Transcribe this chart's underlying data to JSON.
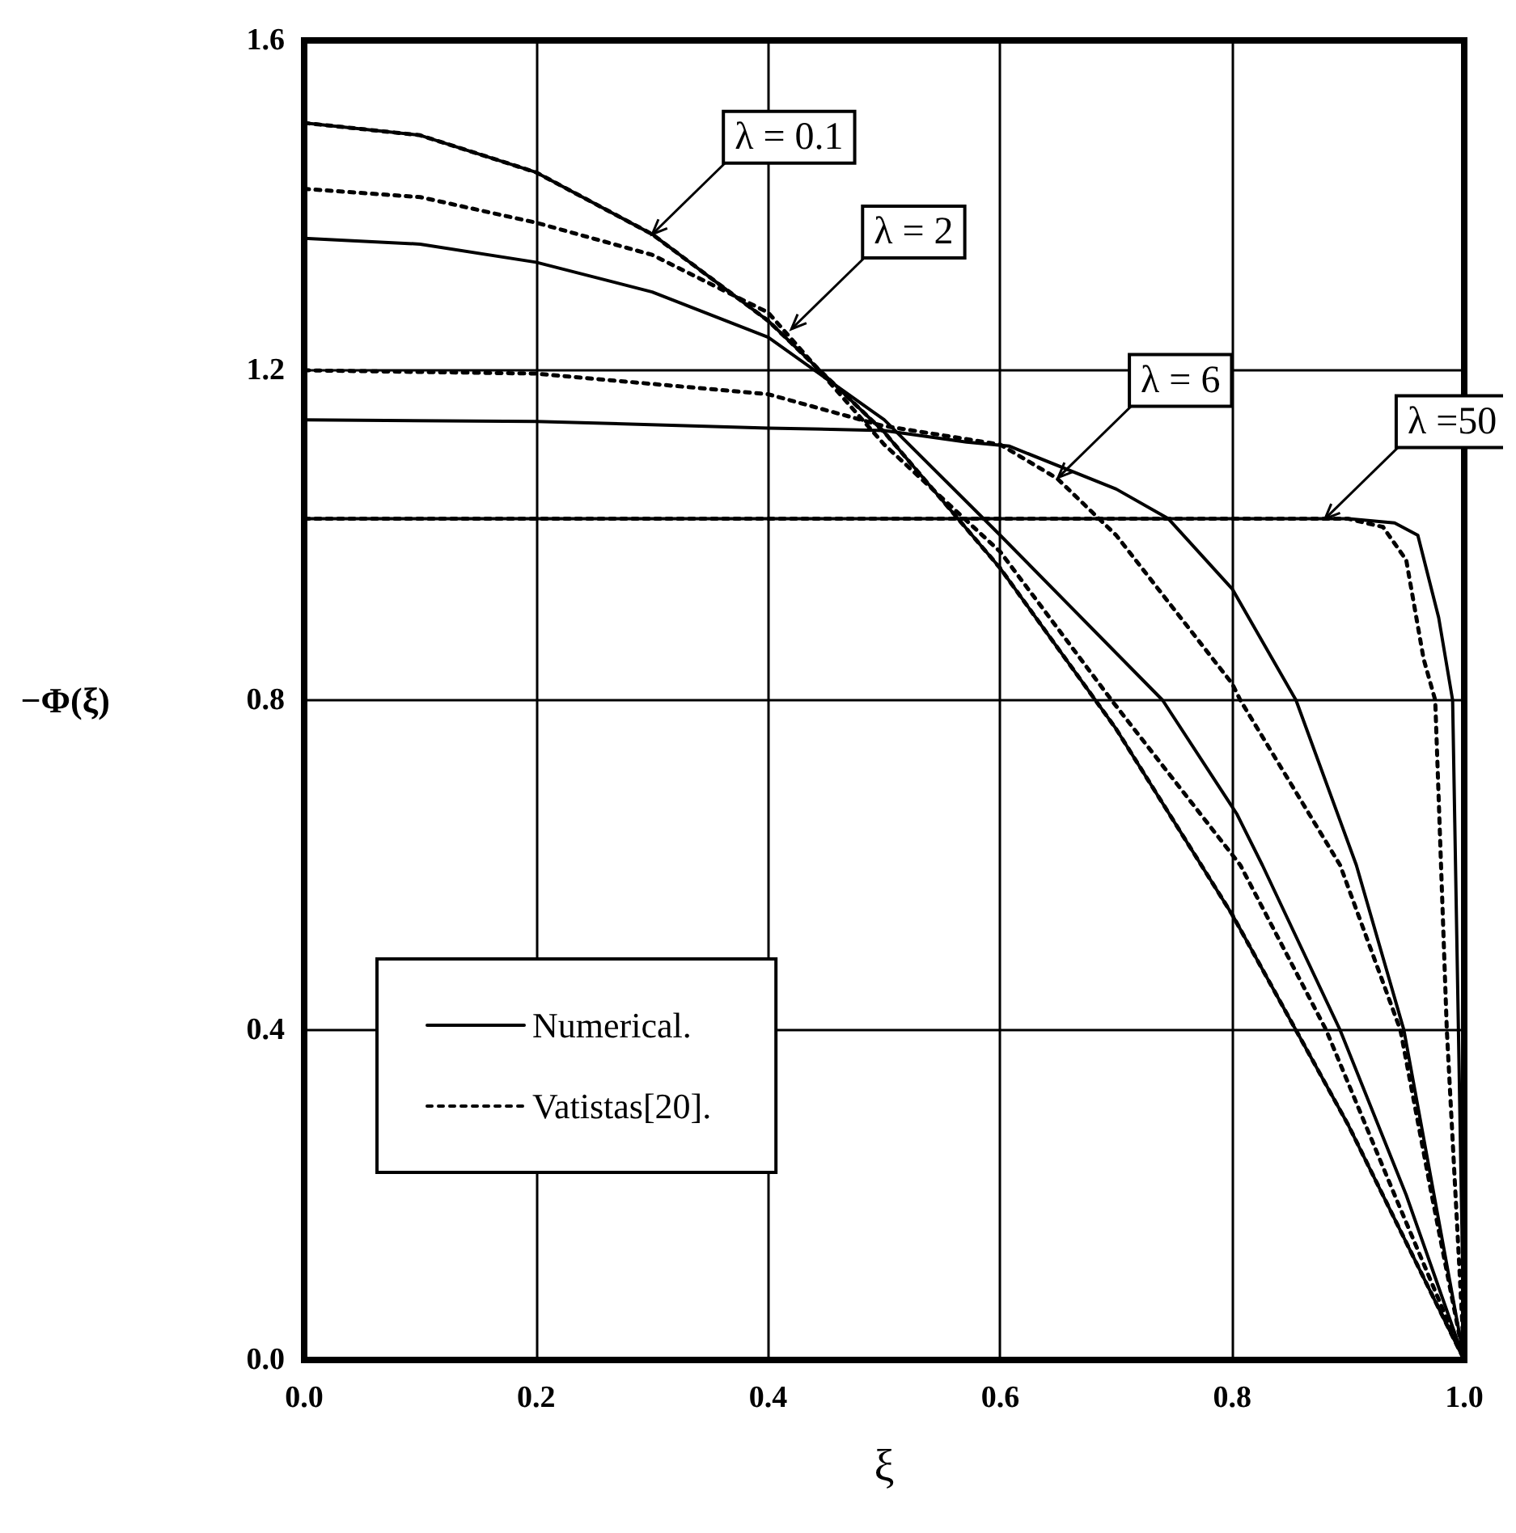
{
  "chart_data": {
    "type": "line",
    "xlabel": "ξ",
    "ylabel": "−Φ(ξ)",
    "xlim": [
      0,
      1
    ],
    "ylim": [
      0,
      1.6
    ],
    "xticks": [
      {
        "value": 0,
        "label": "0.0"
      },
      {
        "value": 0.2,
        "label": "0.2"
      },
      {
        "value": 0.4,
        "label": "0.4"
      },
      {
        "value": 0.6,
        "label": "0.6"
      },
      {
        "value": 0.8,
        "label": "0.8"
      },
      {
        "value": 1,
        "label": "1.0"
      }
    ],
    "yticks": [
      {
        "value": 0,
        "label": "0.0"
      },
      {
        "value": 0.4,
        "label": "0.4"
      },
      {
        "value": 0.8,
        "label": "0.8"
      },
      {
        "value": 1.2,
        "label": "1.2"
      },
      {
        "value": 1.6,
        "label": "1.6"
      }
    ],
    "grid": true,
    "legend": "left",
    "marker": "none",
    "series": [
      {
        "name": "Numerical.",
        "color": "#000000",
        "line_style": "solid",
        "x": [
          0,
          0.1,
          0.2,
          0.3,
          0.4,
          0.5,
          0.6,
          0.7,
          0.8,
          0.9,
          1
        ],
        "values": [
          1.5,
          1.485,
          1.44,
          1.365,
          1.26,
          1.125,
          0.96,
          0.765,
          0.54,
          0.285,
          0
        ]
      },
      {
        "name": "Vatistas[20].",
        "color": "#000000",
        "line_style": "dotted",
        "x": [
          0,
          0.1,
          0.2,
          0.3,
          0.4,
          0.5,
          0.6,
          0.7,
          0.8,
          0.9,
          1
        ],
        "values": [
          1.5,
          1.485,
          1.44,
          1.365,
          1.26,
          1.125,
          0.96,
          0.765,
          0.54,
          0.285,
          0
        ]
      },
      {
        "color": "#000000",
        "line_style": "solid",
        "x": [
          0,
          0.1,
          0.2,
          0.3,
          0.4,
          0.5,
          0.6,
          0.74,
          0.804,
          0.826,
          0.893,
          0.95,
          1
        ],
        "values": [
          1.36,
          1.353,
          1.331,
          1.295,
          1.24,
          1.14,
          1.0,
          0.8,
          0.662,
          0.6,
          0.4,
          0.2,
          0
        ]
      },
      {
        "color": "#000000",
        "line_style": "dotted",
        "x": [
          0,
          0.1,
          0.2,
          0.3,
          0.4,
          0.5,
          0.6,
          0.696,
          0.807,
          0.881,
          0.94,
          1
        ],
        "values": [
          1.42,
          1.41,
          1.379,
          1.34,
          1.27,
          1.11,
          0.98,
          0.8,
          0.6,
          0.4,
          0.2,
          0
        ]
      },
      {
        "color": "#000000",
        "line_style": "solid",
        "x": [
          0,
          0.2,
          0.4,
          0.5,
          0.571,
          0.608,
          0.7,
          0.745,
          0.8,
          0.855,
          0.907,
          0.948,
          0.974,
          1
        ],
        "values": [
          1.14,
          1.138,
          1.13,
          1.127,
          1.113,
          1.108,
          1.056,
          1.02,
          0.935,
          0.8,
          0.6,
          0.4,
          0.2,
          0
        ]
      },
      {
        "color": "#000000",
        "line_style": "dotted",
        "x": [
          0,
          0.2,
          0.4,
          0.498,
          0.6,
          0.649,
          0.7,
          0.8,
          0.807,
          0.893,
          0.945,
          0.972,
          1
        ],
        "values": [
          1.2,
          1.196,
          1.171,
          1.133,
          1.11,
          1.069,
          1.0,
          0.82,
          0.8,
          0.6,
          0.4,
          0.2,
          0
        ]
      },
      {
        "color": "#000000",
        "line_style": "solid",
        "x": [
          0,
          0.9,
          0.94,
          0.96,
          0.978,
          0.99,
          0.995,
          1
        ],
        "values": [
          1.02,
          1.02,
          1.015,
          1.0,
          0.9,
          0.8,
          0.4,
          0
        ]
      },
      {
        "color": "#000000",
        "line_style": "dotted",
        "x": [
          0,
          0.9,
          0.93,
          0.95,
          0.965,
          0.975,
          0.985,
          1
        ],
        "values": [
          1.02,
          1.02,
          1.01,
          0.97,
          0.85,
          0.8,
          0.4,
          0
        ]
      }
    ],
    "annotations": [
      {
        "text": "λ = 0.1",
        "x": 0.3,
        "y": 1.365
      },
      {
        "text": "λ = 2",
        "x": 0.42,
        "y": 1.25
      },
      {
        "text": "λ = 6",
        "x": 0.65,
        "y": 1.07
      },
      {
        "text": "λ =50",
        "x": 0.88,
        "y": 1.02
      }
    ]
  }
}
